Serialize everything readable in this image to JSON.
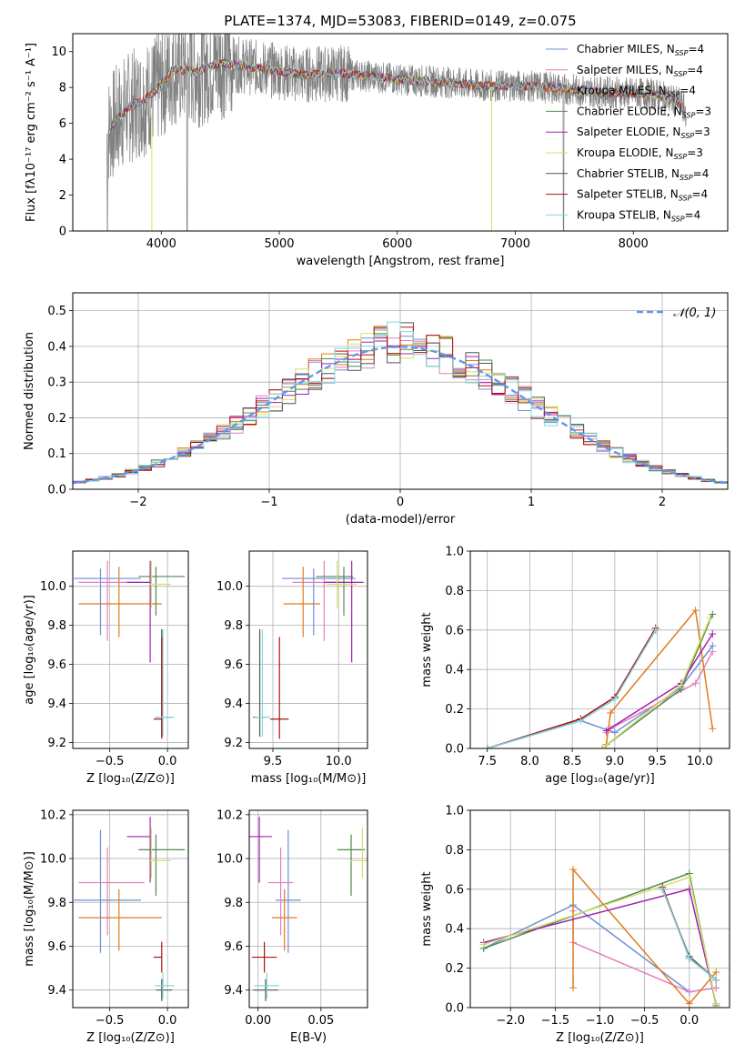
{
  "colors": {
    "Chabrier MILES": "#6b8fd6",
    "Salpeter MILES": "#e37fbd",
    "Kroupa MILES": "#e07a1f",
    "Chabrier ELODIE": "#4f8a4f",
    "Salpeter ELODIE": "#a020b0",
    "Kroupa ELODIE": "#d3e06a",
    "Chabrier STELIB": "#555555",
    "Salpeter STELIB": "#b01010",
    "Kroupa STELIB": "#7fd8e0",
    "data": "#808080",
    "normal": "#6495ed"
  },
  "chart_data": [
    {
      "id": "spectrum",
      "type": "line",
      "title": "PLATE=1374, MJD=53083, FIBERID=0149, z=0.075",
      "xlabel": "wavelength [Angstrom, rest frame]",
      "ylabel": "Flux [fλ10⁻¹⁷ erg cm⁻² s⁻¹ A⁻¹]",
      "xlim": [
        3250,
        8800
      ],
      "ylim": [
        0,
        11
      ],
      "xticks": [
        4000,
        5000,
        6000,
        7000,
        8000
      ],
      "yticks": [
        0,
        2,
        4,
        6,
        8,
        10
      ],
      "grid": false,
      "legend_position": "top-right",
      "legend": [
        "Chabrier MILES, N_SSP=4",
        "Salpeter MILES, N_SSP=4",
        "Kroupa MILES, N_SSP=4",
        "Chabrier ELODIE, N_SSP=3",
        "Salpeter ELODIE, N_SSP=3",
        "Kroupa ELODIE, N_SSP=3",
        "Chabrier STELIB, N_SSP=4",
        "Salpeter STELIB, N_SSP=4",
        "Kroupa STELIB, N_SSP=4"
      ],
      "continuum": [
        [
          3540,
          5.5
        ],
        [
          3700,
          6.8
        ],
        [
          3850,
          7.3
        ],
        [
          3950,
          7.8
        ],
        [
          4100,
          9.0
        ],
        [
          4300,
          8.9
        ],
        [
          4500,
          9.4
        ],
        [
          4800,
          9.1
        ],
        [
          5000,
          8.9
        ],
        [
          5200,
          8.7
        ],
        [
          5500,
          8.8
        ],
        [
          5800,
          8.6
        ],
        [
          6100,
          8.4
        ],
        [
          6400,
          8.3
        ],
        [
          6700,
          8.1
        ],
        [
          7000,
          8.1
        ],
        [
          7300,
          8.0
        ],
        [
          7600,
          7.8
        ],
        [
          7900,
          7.7
        ],
        [
          8200,
          7.6
        ],
        [
          8400,
          7.1
        ],
        [
          8450,
          6.6
        ]
      ]
    },
    {
      "id": "residuals",
      "type": "step-histogram",
      "xlabel": "(data-model)/error",
      "ylabel": "Normed distribution",
      "xlim": [
        -2.5,
        2.5
      ],
      "ylim": [
        0,
        0.55
      ],
      "xticks": [
        -2,
        -1,
        0,
        1,
        2
      ],
      "yticks": [
        0.0,
        0.1,
        0.2,
        0.3,
        0.4,
        0.5
      ],
      "grid": true,
      "legend_position": "top-right",
      "legend": [
        "𝒩(0, 1)"
      ],
      "normal_curve": {
        "mean": 0,
        "sigma": 1
      },
      "bin_width": 0.1
    },
    {
      "id": "age-vs-Z",
      "type": "errorbar",
      "xlabel": "Z [log₁₀(Z/Z⊙)]",
      "ylabel": "age [log₁₀(age/yr)]",
      "xlim": [
        -0.82,
        0.18
      ],
      "ylim": [
        9.17,
        10.18
      ],
      "xticks": [
        -0.5,
        0.0
      ],
      "yticks": [
        9.2,
        9.4,
        9.6,
        9.8,
        10.0
      ],
      "grid": true
    },
    {
      "id": "age-vs-mass",
      "type": "errorbar",
      "xlabel": "mass [log₁₀(M/M⊙)]",
      "ylabel": "",
      "xlim": [
        9.32,
        10.22
      ],
      "ylim": [
        9.17,
        10.18
      ],
      "xticks": [
        9.5,
        10.0
      ],
      "yticks": [
        9.2,
        9.4,
        9.6,
        9.8,
        10.0
      ],
      "grid": true
    },
    {
      "id": "mass-weight-vs-age",
      "type": "line",
      "xlabel": "age [log₁₀(age/yr)]",
      "ylabel": "mass weight",
      "xlim": [
        7.3,
        10.35
      ],
      "ylim": [
        0,
        1
      ],
      "xticks": [
        7.5,
        8.0,
        8.5,
        9.0,
        9.5,
        10.0
      ],
      "yticks": [
        0.0,
        0.2,
        0.4,
        0.6,
        0.8,
        1.0
      ],
      "grid": true
    },
    {
      "id": "mass-vs-Z",
      "type": "errorbar",
      "xlabel": "Z [log₁₀(Z/Z⊙)]",
      "ylabel": "mass [log₁₀(M/M⊙)]",
      "xlim": [
        -0.82,
        0.18
      ],
      "ylim": [
        9.32,
        10.22
      ],
      "xticks": [
        -0.5,
        0.0
      ],
      "yticks": [
        9.4,
        9.6,
        9.8,
        10.0,
        10.2
      ],
      "grid": true
    },
    {
      "id": "mass-vs-EBV",
      "type": "errorbar",
      "xlabel": "E(B-V)",
      "ylabel": "",
      "xlim": [
        -0.007,
        0.087
      ],
      "ylim": [
        9.32,
        10.22
      ],
      "xticks": [
        0.0,
        0.05
      ],
      "yticks": [
        9.4,
        9.6,
        9.8,
        10.0,
        10.2
      ],
      "grid": true
    },
    {
      "id": "mass-weight-vs-Z",
      "type": "line",
      "xlabel": "Z [log₁₀(Z/Z⊙)]",
      "ylabel": "mass weight",
      "xlim": [
        -2.45,
        0.45
      ],
      "ylim": [
        0,
        1
      ],
      "xticks": [
        -2.0,
        -1.5,
        -1.0,
        -0.5,
        0.0
      ],
      "yticks": [
        0.0,
        0.2,
        0.4,
        0.6,
        0.8,
        1.0
      ],
      "grid": true
    }
  ],
  "models": [
    {
      "name": "Chabrier MILES",
      "age": 10.04,
      "age_err": [
        0.29,
        0.05
      ],
      "Z": -0.58,
      "Z_err": [
        0.23,
        0.35
      ],
      "mass": 9.81,
      "mass_err": [
        0.24,
        0.32
      ],
      "ebv": 0.024,
      "ebv_err": [
        0.01,
        0.01
      ],
      "ages": [
        7.5,
        8.6,
        9.0,
        9.78,
        10.15
      ],
      "weights": [
        0.0,
        0.14,
        0.08,
        0.31,
        0.52
      ],
      "Zs": [
        -2.3,
        -1.3,
        0.0,
        0.3
      ],
      "zweights": [
        0.3,
        0.52,
        0.08,
        0.1
      ]
    },
    {
      "name": "Salpeter MILES",
      "age": 10.02,
      "age_err": [
        0.3,
        0.11
      ],
      "Z": -0.52,
      "Z_err": [
        0.25,
        0.32
      ],
      "mass": 9.89,
      "mass_err": [
        0.24,
        0.16
      ],
      "ebv": 0.018,
      "ebv_err": [
        0.01,
        0.01
      ],
      "ages": [
        8.9,
        8.95,
        9.95,
        10.15
      ],
      "weights": [
        0.08,
        0.1,
        0.33,
        0.49
      ],
      "Zs": [
        -1.3,
        -1.3,
        0.0,
        0.3
      ],
      "zweights": [
        0.49,
        0.33,
        0.08,
        0.1
      ]
    },
    {
      "name": "Kroupa MILES",
      "age": 9.91,
      "age_err": [
        0.17,
        0.19
      ],
      "Z": -0.42,
      "Z_err": [
        0.35,
        0.37
      ],
      "mass": 9.73,
      "mass_err": [
        0.15,
        0.13
      ],
      "ebv": 0.021,
      "ebv_err": [
        0.01,
        0.01
      ],
      "ages": [
        8.9,
        8.95,
        9.95,
        10.15
      ],
      "weights": [
        0.02,
        0.18,
        0.7,
        0.1
      ],
      "Zs": [
        -1.3,
        -1.3,
        0.0,
        0.3
      ],
      "zweights": [
        0.1,
        0.7,
        0.02,
        0.18
      ]
    },
    {
      "name": "Chabrier ELODIE",
      "age": 10.05,
      "age_err": [
        0.2,
        0.05
      ],
      "Z": -0.1,
      "Z_err": [
        0.15,
        0.25
      ],
      "mass": 10.04,
      "mass_err": [
        0.21,
        0.07
      ],
      "ebv": 0.074,
      "ebv_err": [
        0.011,
        0.011
      ],
      "ages": [
        8.85,
        9.78,
        10.15
      ],
      "weights": [
        0.0,
        0.3,
        0.68
      ],
      "Zs": [
        -2.3,
        0.0,
        0.3
      ],
      "zweights": [
        0.3,
        0.68,
        0.01
      ]
    },
    {
      "name": "Salpeter ELODIE",
      "age": 10.02,
      "age_err": [
        0.41,
        0.11
      ],
      "Z": -0.15,
      "Z_err": [
        0.2,
        0.0
      ],
      "mass": 10.1,
      "mass_err": [
        0.21,
        0.09
      ],
      "ebv": 0.001,
      "ebv_err": [
        0.01,
        0.01
      ],
      "ages": [
        8.9,
        9.78,
        10.15
      ],
      "weights": [
        0.09,
        0.33,
        0.58
      ],
      "Zs": [
        -2.3,
        0.0,
        0.3
      ],
      "zweights": [
        0.33,
        0.6,
        0.02
      ]
    },
    {
      "name": "Kroupa ELODIE",
      "age": 10.01,
      "age_err": [
        0.12,
        0.12
      ],
      "Z": -0.14,
      "Z_err": [
        0.02,
        0.17
      ],
      "mass": 9.99,
      "mass_err": [
        0.08,
        0.15
      ],
      "ebv": 0.083,
      "ebv_err": [
        0.01,
        0.01
      ],
      "ages": [
        8.85,
        9.78,
        10.12
      ],
      "weights": [
        0.0,
        0.32,
        0.66
      ],
      "Zs": [
        -2.3,
        0.0,
        0.3
      ],
      "zweights": [
        0.32,
        0.66,
        0.02
      ]
    },
    {
      "name": "Chabrier STELIB",
      "age": 9.33,
      "age_err": [
        0.1,
        0.45
      ],
      "Z": -0.05,
      "Z_err": [
        0.05,
        0.09
      ],
      "mass": 9.4,
      "mass_err": [
        0.05,
        0.05
      ],
      "ebv": 0.006,
      "ebv_err": [
        0.01,
        0.01
      ],
      "ages": [
        7.5,
        8.6,
        9.0,
        9.48
      ],
      "weights": [
        0.0,
        0.15,
        0.26,
        0.6
      ],
      "Zs": [
        -0.3,
        0.0,
        0.3
      ],
      "zweights": [
        0.6,
        0.26,
        0.14
      ]
    },
    {
      "name": "Salpeter STELIB",
      "age": 9.32,
      "age_err": [
        0.1,
        0.42
      ],
      "Z": -0.05,
      "Z_err": [
        0.07,
        0.0
      ],
      "mass": 9.55,
      "mass_err": [
        0.07,
        0.07
      ],
      "ebv": 0.005,
      "ebv_err": [
        0.01,
        0.01
      ],
      "ages": [
        7.5,
        8.6,
        9.0,
        9.48
      ],
      "weights": [
        0.0,
        0.15,
        0.26,
        0.61
      ],
      "Zs": [
        -0.3,
        0.0,
        0.3
      ],
      "zweights": [
        0.61,
        0.25,
        0.14
      ]
    },
    {
      "name": "Kroupa STELIB",
      "age": 9.33,
      "age_err": [
        0.1,
        0.45
      ],
      "Z": -0.04,
      "Z_err": [
        0.07,
        0.1
      ],
      "mass": 9.42,
      "mass_err": [
        0.06,
        0.06
      ],
      "ebv": 0.007,
      "ebv_err": [
        0.01,
        0.01
      ],
      "ages": [
        7.5,
        8.6,
        9.0,
        9.48
      ],
      "weights": [
        0.0,
        0.14,
        0.25,
        0.6
      ],
      "Zs": [
        -0.3,
        0.0,
        0.3
      ],
      "zweights": [
        0.6,
        0.25,
        0.14
      ]
    }
  ]
}
